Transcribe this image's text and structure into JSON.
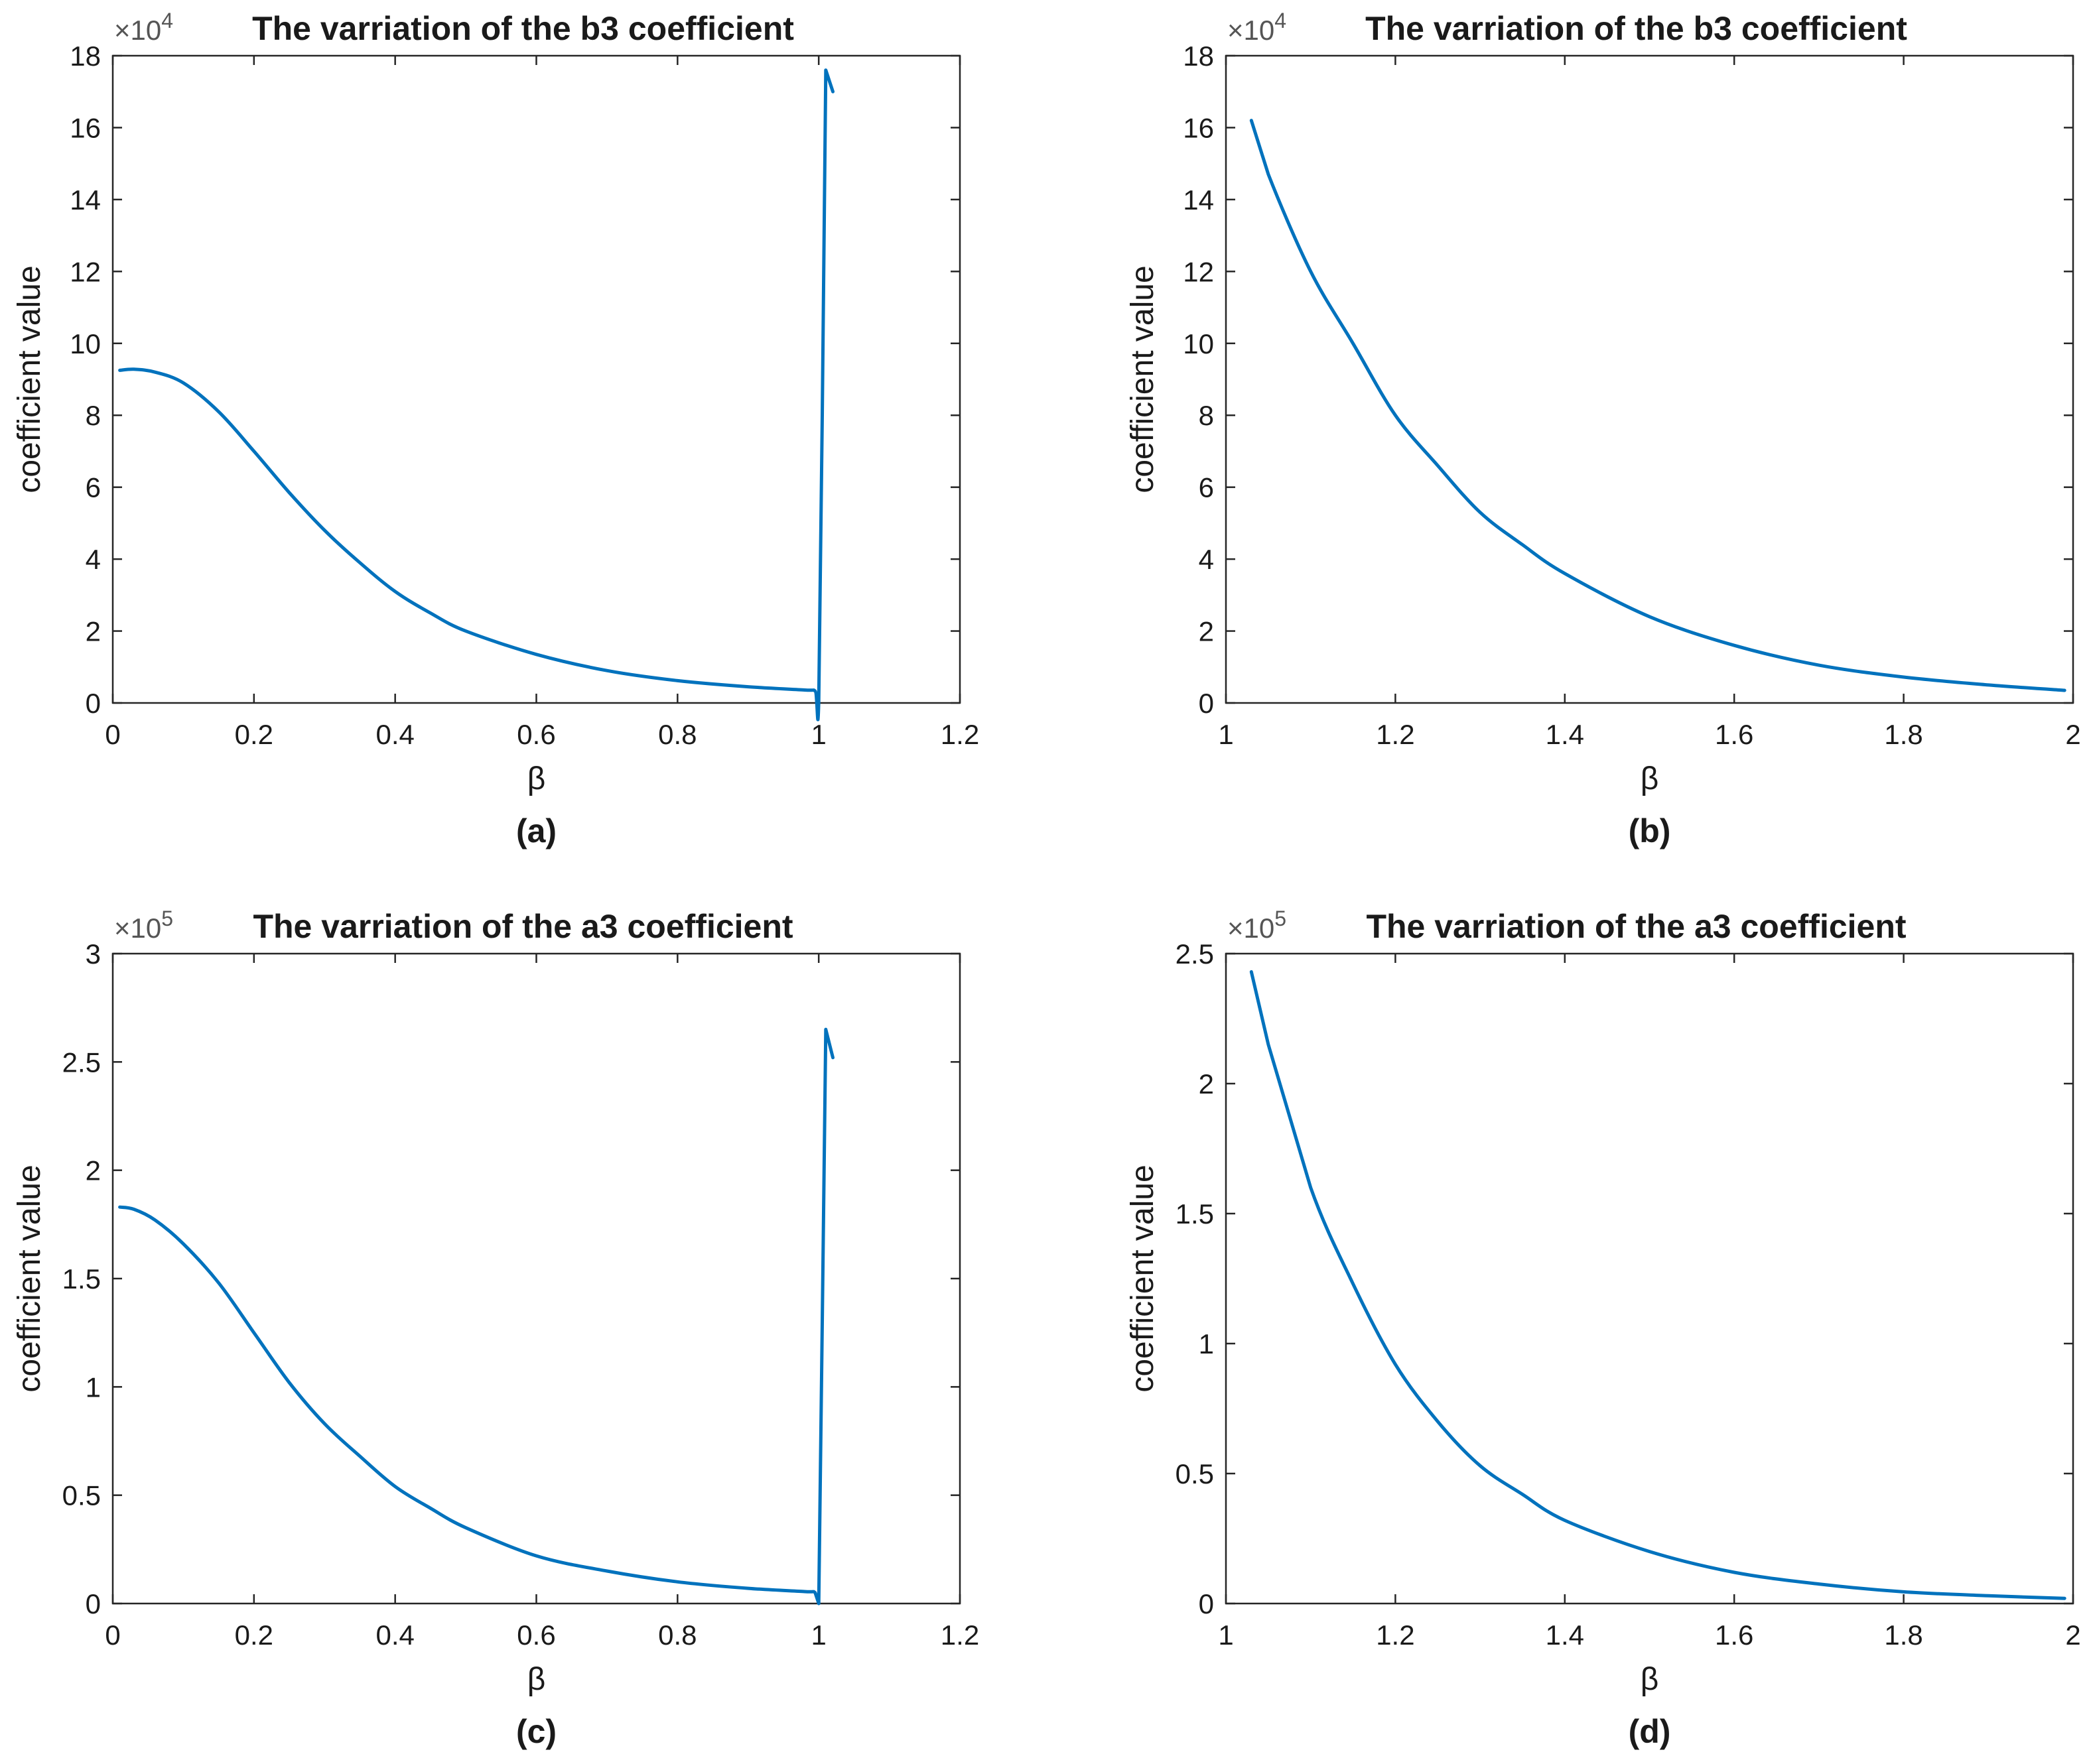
{
  "colors": {
    "line": "#0072BD",
    "axis": "#262626"
  },
  "chart_data": [
    {
      "type": "line",
      "panel": "(a)",
      "title": "The varriation of the b3 coefficient",
      "xlabel": "β",
      "ylabel": "coefficient value",
      "multiplier_base": "×10",
      "multiplier_exp": "4",
      "xlim": [
        0,
        1.2
      ],
      "ylim": [
        0,
        18
      ],
      "xticks": [
        0,
        0.2,
        0.4,
        0.6,
        0.8,
        1,
        1.2
      ],
      "xtick_labels": [
        "0",
        "0.2",
        "0.4",
        "0.6",
        "0.8",
        "1",
        "1.2"
      ],
      "yticks": [
        0,
        2,
        4,
        6,
        8,
        10,
        12,
        14,
        16,
        18
      ],
      "ytick_labels": [
        "0",
        "2",
        "4",
        "6",
        "8",
        "10",
        "12",
        "14",
        "16",
        "18"
      ],
      "series": [
        {
          "name": "b3",
          "x": [
            0.01,
            0.03,
            0.06,
            0.1,
            0.15,
            0.2,
            0.25,
            0.3,
            0.35,
            0.4,
            0.45,
            0.5,
            0.6,
            0.7,
            0.8,
            0.9,
            0.98,
            0.995,
            1.0,
            1.005,
            1.01,
            1.02
          ],
          "y": [
            9.25,
            9.28,
            9.2,
            8.9,
            8.1,
            7.0,
            5.85,
            4.8,
            3.9,
            3.1,
            2.5,
            2.0,
            1.35,
            0.9,
            0.62,
            0.45,
            0.36,
            0.33,
            0.05,
            8.0,
            17.6,
            17.0
          ]
        }
      ]
    },
    {
      "type": "line",
      "panel": "(b)",
      "title": "The varriation of the b3 coefficient",
      "xlabel": "β",
      "ylabel": "coefficient value",
      "multiplier_base": "×10",
      "multiplier_exp": "4",
      "xlim": [
        1,
        2
      ],
      "ylim": [
        0,
        18
      ],
      "xticks": [
        1,
        1.2,
        1.4,
        1.6,
        1.8,
        2
      ],
      "xtick_labels": [
        "1",
        "1.2",
        "1.4",
        "1.6",
        "1.8",
        "2"
      ],
      "yticks": [
        0,
        2,
        4,
        6,
        8,
        10,
        12,
        14,
        16,
        18
      ],
      "ytick_labels": [
        "0",
        "2",
        "4",
        "6",
        "8",
        "10",
        "12",
        "14",
        "16",
        "18"
      ],
      "series": [
        {
          "name": "b3",
          "x": [
            1.03,
            1.05,
            1.1,
            1.15,
            1.2,
            1.25,
            1.3,
            1.35,
            1.4,
            1.5,
            1.6,
            1.7,
            1.8,
            1.9,
            1.99
          ],
          "y": [
            16.2,
            14.7,
            12.0,
            10.0,
            8.0,
            6.6,
            5.3,
            4.4,
            3.6,
            2.4,
            1.6,
            1.05,
            0.72,
            0.5,
            0.35
          ]
        }
      ]
    },
    {
      "type": "line",
      "panel": "(c)",
      "title": "The varriation of the a3 coefficient",
      "xlabel": "β",
      "ylabel": "coefficient value",
      "multiplier_base": "×10",
      "multiplier_exp": "5",
      "xlim": [
        0,
        1.2
      ],
      "ylim": [
        0,
        3
      ],
      "xticks": [
        0,
        0.2,
        0.4,
        0.6,
        0.8,
        1,
        1.2
      ],
      "xtick_labels": [
        "0",
        "0.2",
        "0.4",
        "0.6",
        "0.8",
        "1",
        "1.2"
      ],
      "yticks": [
        0,
        0.5,
        1,
        1.5,
        2,
        2.5,
        3
      ],
      "ytick_labels": [
        "0",
        "0.5",
        "1",
        "1.5",
        "2",
        "2.5",
        "3"
      ],
      "series": [
        {
          "name": "a3",
          "x": [
            0.01,
            0.03,
            0.06,
            0.1,
            0.15,
            0.2,
            0.25,
            0.3,
            0.35,
            0.4,
            0.45,
            0.5,
            0.6,
            0.7,
            0.8,
            0.9,
            0.98,
            0.995,
            1.0,
            1.005,
            1.01,
            1.02
          ],
          "y": [
            1.83,
            1.82,
            1.77,
            1.66,
            1.48,
            1.25,
            1.02,
            0.83,
            0.68,
            0.54,
            0.44,
            0.35,
            0.22,
            0.15,
            0.1,
            0.07,
            0.055,
            0.05,
            0.0,
            1.3,
            2.65,
            2.52
          ]
        }
      ]
    },
    {
      "type": "line",
      "panel": "(d)",
      "title": "The varriation of the a3 coefficient",
      "xlabel": "β",
      "ylabel": "coefficient value",
      "multiplier_base": "×10",
      "multiplier_exp": "5",
      "xlim": [
        1,
        2
      ],
      "ylim": [
        0,
        2.5
      ],
      "xticks": [
        1,
        1.2,
        1.4,
        1.6,
        1.8,
        2
      ],
      "xtick_labels": [
        "1",
        "1.2",
        "1.4",
        "1.6",
        "1.8",
        "2"
      ],
      "yticks": [
        0,
        0.5,
        1,
        1.5,
        2,
        2.5
      ],
      "ytick_labels": [
        "0",
        "0.5",
        "1",
        "1.5",
        "2",
        "2.5"
      ],
      "series": [
        {
          "name": "a3",
          "x": [
            1.03,
            1.05,
            1.1,
            1.15,
            1.2,
            1.25,
            1.3,
            1.35,
            1.4,
            1.5,
            1.6,
            1.7,
            1.8,
            1.9,
            1.99
          ],
          "y": [
            2.43,
            2.15,
            1.6,
            1.23,
            0.92,
            0.7,
            0.53,
            0.42,
            0.32,
            0.2,
            0.12,
            0.075,
            0.045,
            0.03,
            0.02
          ]
        }
      ]
    }
  ]
}
